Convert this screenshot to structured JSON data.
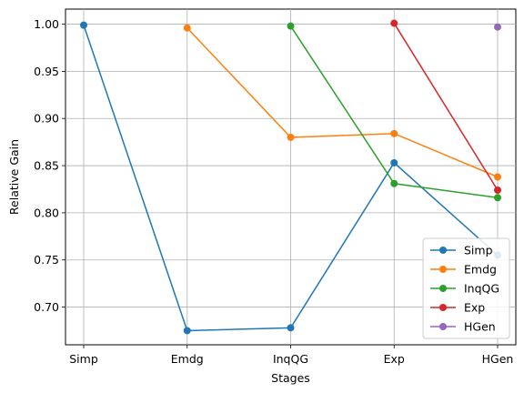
{
  "chart_data": {
    "type": "line",
    "title": "",
    "xlabel": "Stages",
    "ylabel": "Relative Gain",
    "categories": [
      "Simp",
      "Emdg",
      "InqQG",
      "Exp",
      "HGen"
    ],
    "ylim": [
      0.66,
      1.016
    ],
    "yticks": [
      "0.70",
      "0.75",
      "0.80",
      "0.85",
      "0.90",
      "0.95",
      "1.00"
    ],
    "grid": true,
    "legend_position": "lower right",
    "series": [
      {
        "name": "Simp",
        "color": "#1f77b4",
        "values": [
          0.999,
          0.675,
          0.678,
          0.853,
          0.755
        ]
      },
      {
        "name": "Emdg",
        "color": "#ff7f0e",
        "values": [
          null,
          0.996,
          0.88,
          0.884,
          0.838
        ]
      },
      {
        "name": "InqQG",
        "color": "#2ca02c",
        "values": [
          null,
          null,
          0.998,
          0.831,
          0.816
        ]
      },
      {
        "name": "Exp",
        "color": "#d62728",
        "values": [
          null,
          null,
          null,
          1.001,
          0.824
        ]
      },
      {
        "name": "HGen",
        "color": "#9467bd",
        "values": [
          null,
          null,
          null,
          null,
          0.997
        ]
      }
    ]
  }
}
